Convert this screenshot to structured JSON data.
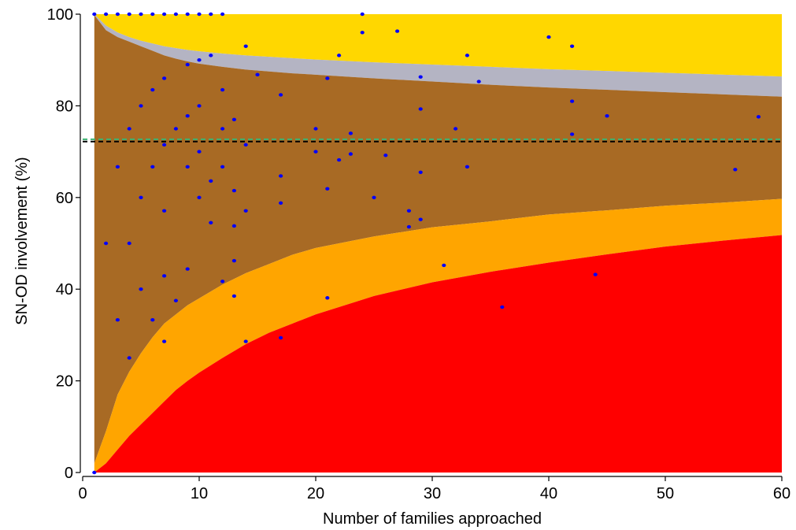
{
  "chart_data": {
    "type": "scatter",
    "title": "",
    "xlabel": "Number of families approached",
    "ylabel": "SN-OD involvement (%)",
    "xlim": [
      0,
      60
    ],
    "ylim": [
      0,
      100
    ],
    "x_ticks": [
      0,
      10,
      20,
      30,
      40,
      50,
      60
    ],
    "y_ticks": [
      0,
      20,
      40,
      60,
      80,
      100
    ],
    "grid": false,
    "legend": "none",
    "reference_lines": [
      {
        "y": 72.7,
        "style": "dashed",
        "color": "#3cb371"
      },
      {
        "y": 72.2,
        "style": "dashed",
        "color": "#000000"
      }
    ],
    "bands": [
      {
        "color": "#ffd700",
        "x": [
          1,
          60
        ],
        "lower": "upper_outer",
        "upper": 100
      },
      {
        "color": "#b4b4c3",
        "lower": "upper_inner",
        "upper": "upper_outer"
      },
      {
        "color": "#a86a24",
        "lower": "lower_inner",
        "upper": "upper_inner"
      },
      {
        "color": "#ffa500",
        "lower": "lower_outer",
        "upper": "lower_inner"
      },
      {
        "color": "#ff0000",
        "lower": 0,
        "upper": "lower_outer"
      }
    ],
    "band_curves": {
      "x": [
        1,
        2,
        3,
        4,
        5,
        6,
        7,
        8,
        9,
        10,
        12,
        14,
        16,
        18,
        20,
        25,
        30,
        35,
        40,
        45,
        50,
        55,
        60
      ],
      "upper_outer": [
        100,
        100,
        100,
        100,
        100,
        100,
        100,
        100,
        100,
        100,
        100,
        100,
        100,
        100,
        100,
        100,
        100,
        100,
        100,
        100,
        100,
        100,
        100
      ],
      "upper_inner": [
        100,
        97.5,
        96.0,
        95.0,
        94.2,
        93.6,
        93.0,
        92.6,
        92.2,
        91.9,
        91.4,
        91.0,
        90.7,
        90.4,
        90.1,
        89.5,
        89.0,
        88.5,
        88.0,
        87.6,
        87.2,
        86.8,
        86.4
      ],
      "lower_inner": [
        99.8,
        96.5,
        95.0,
        94.0,
        93.0,
        92.0,
        91.0,
        90.3,
        89.7,
        89.2,
        88.5,
        87.9,
        87.5,
        87.1,
        86.8,
        86.0,
        85.3,
        84.6,
        84.0,
        83.5,
        83.0,
        82.5,
        82.0
      ],
      "lower_outer_inner_edge": [
        2.0,
        9.0,
        17.0,
        22.0,
        26.0,
        29.5,
        32.5,
        34.5,
        36.5,
        38.0,
        41.0,
        43.5,
        45.5,
        47.5,
        49.0,
        51.5,
        53.5,
        54.8,
        56.3,
        57.2,
        58.2,
        58.9,
        59.7
      ],
      "red_top": [
        0,
        2.0,
        5.0,
        8.0,
        10.5,
        13.0,
        15.5,
        18.0,
        20.0,
        21.8,
        25.0,
        28.0,
        30.5,
        32.5,
        34.5,
        38.5,
        41.5,
        43.8,
        45.8,
        47.6,
        49.3,
        50.6,
        51.8
      ]
    },
    "points": [
      {
        "x": 1,
        "y": 100
      },
      {
        "x": 2,
        "y": 100
      },
      {
        "x": 3,
        "y": 100
      },
      {
        "x": 4,
        "y": 100
      },
      {
        "x": 5,
        "y": 100
      },
      {
        "x": 6,
        "y": 100
      },
      {
        "x": 7,
        "y": 100
      },
      {
        "x": 8,
        "y": 100
      },
      {
        "x": 9,
        "y": 100
      },
      {
        "x": 10,
        "y": 100
      },
      {
        "x": 11,
        "y": 100
      },
      {
        "x": 12,
        "y": 100
      },
      {
        "x": 24,
        "y": 100
      },
      {
        "x": 24,
        "y": 96
      },
      {
        "x": 27,
        "y": 96.3
      },
      {
        "x": 40,
        "y": 95
      },
      {
        "x": 42,
        "y": 93
      },
      {
        "x": 14,
        "y": 93
      },
      {
        "x": 22,
        "y": 91
      },
      {
        "x": 33,
        "y": 91
      },
      {
        "x": 11,
        "y": 91
      },
      {
        "x": 10,
        "y": 90
      },
      {
        "x": 9,
        "y": 89
      },
      {
        "x": 15,
        "y": 86.8
      },
      {
        "x": 29,
        "y": 86.3
      },
      {
        "x": 21,
        "y": 86
      },
      {
        "x": 7,
        "y": 86
      },
      {
        "x": 34,
        "y": 85.3
      },
      {
        "x": 6,
        "y": 83.5
      },
      {
        "x": 12,
        "y": 83.5
      },
      {
        "x": 17,
        "y": 82.4
      },
      {
        "x": 42,
        "y": 81
      },
      {
        "x": 5,
        "y": 80
      },
      {
        "x": 10,
        "y": 80
      },
      {
        "x": 29,
        "y": 79.3
      },
      {
        "x": 9,
        "y": 77.8
      },
      {
        "x": 45,
        "y": 77.8
      },
      {
        "x": 58,
        "y": 77.6
      },
      {
        "x": 13,
        "y": 77
      },
      {
        "x": 4,
        "y": 75
      },
      {
        "x": 8,
        "y": 75
      },
      {
        "x": 12,
        "y": 75
      },
      {
        "x": 20,
        "y": 75
      },
      {
        "x": 32,
        "y": 75
      },
      {
        "x": 23,
        "y": 74
      },
      {
        "x": 42,
        "y": 73.8
      },
      {
        "x": 7,
        "y": 71.5
      },
      {
        "x": 14,
        "y": 71.5
      },
      {
        "x": 10,
        "y": 70
      },
      {
        "x": 20,
        "y": 70
      },
      {
        "x": 23,
        "y": 69.5
      },
      {
        "x": 26,
        "y": 69.2
      },
      {
        "x": 22,
        "y": 68.2
      },
      {
        "x": 3,
        "y": 66.7
      },
      {
        "x": 6,
        "y": 66.7
      },
      {
        "x": 9,
        "y": 66.7
      },
      {
        "x": 12,
        "y": 66.7
      },
      {
        "x": 33,
        "y": 66.7
      },
      {
        "x": 56,
        "y": 66.1
      },
      {
        "x": 29,
        "y": 65.5
      },
      {
        "x": 17,
        "y": 64.7
      },
      {
        "x": 11,
        "y": 63.6
      },
      {
        "x": 13,
        "y": 61.5
      },
      {
        "x": 21,
        "y": 61.9
      },
      {
        "x": 5,
        "y": 60
      },
      {
        "x": 10,
        "y": 60
      },
      {
        "x": 25,
        "y": 60
      },
      {
        "x": 17,
        "y": 58.8
      },
      {
        "x": 7,
        "y": 57.1
      },
      {
        "x": 14,
        "y": 57.1
      },
      {
        "x": 28,
        "y": 57.1
      },
      {
        "x": 29,
        "y": 55.2
      },
      {
        "x": 11,
        "y": 54.5
      },
      {
        "x": 13,
        "y": 53.8
      },
      {
        "x": 28,
        "y": 53.6
      },
      {
        "x": 2,
        "y": 50
      },
      {
        "x": 4,
        "y": 50
      },
      {
        "x": 13,
        "y": 46.2
      },
      {
        "x": 31,
        "y": 45.2
      },
      {
        "x": 9,
        "y": 44.4
      },
      {
        "x": 44,
        "y": 43.2
      },
      {
        "x": 7,
        "y": 42.9
      },
      {
        "x": 12,
        "y": 41.7
      },
      {
        "x": 5,
        "y": 40
      },
      {
        "x": 13,
        "y": 38.5
      },
      {
        "x": 21,
        "y": 38.1
      },
      {
        "x": 8,
        "y": 37.5
      },
      {
        "x": 36,
        "y": 36.1
      },
      {
        "x": 3,
        "y": 33.3
      },
      {
        "x": 6,
        "y": 33.3
      },
      {
        "x": 17,
        "y": 29.4
      },
      {
        "x": 7,
        "y": 28.6
      },
      {
        "x": 14,
        "y": 28.6
      },
      {
        "x": 4,
        "y": 25
      },
      {
        "x": 1,
        "y": 0
      }
    ],
    "colors": {
      "yellow": "#ffd700",
      "grey": "#b4b4c3",
      "brown": "#a86a24",
      "orange": "#ffa500",
      "red": "#ff0000",
      "points": "#0000ff"
    }
  }
}
